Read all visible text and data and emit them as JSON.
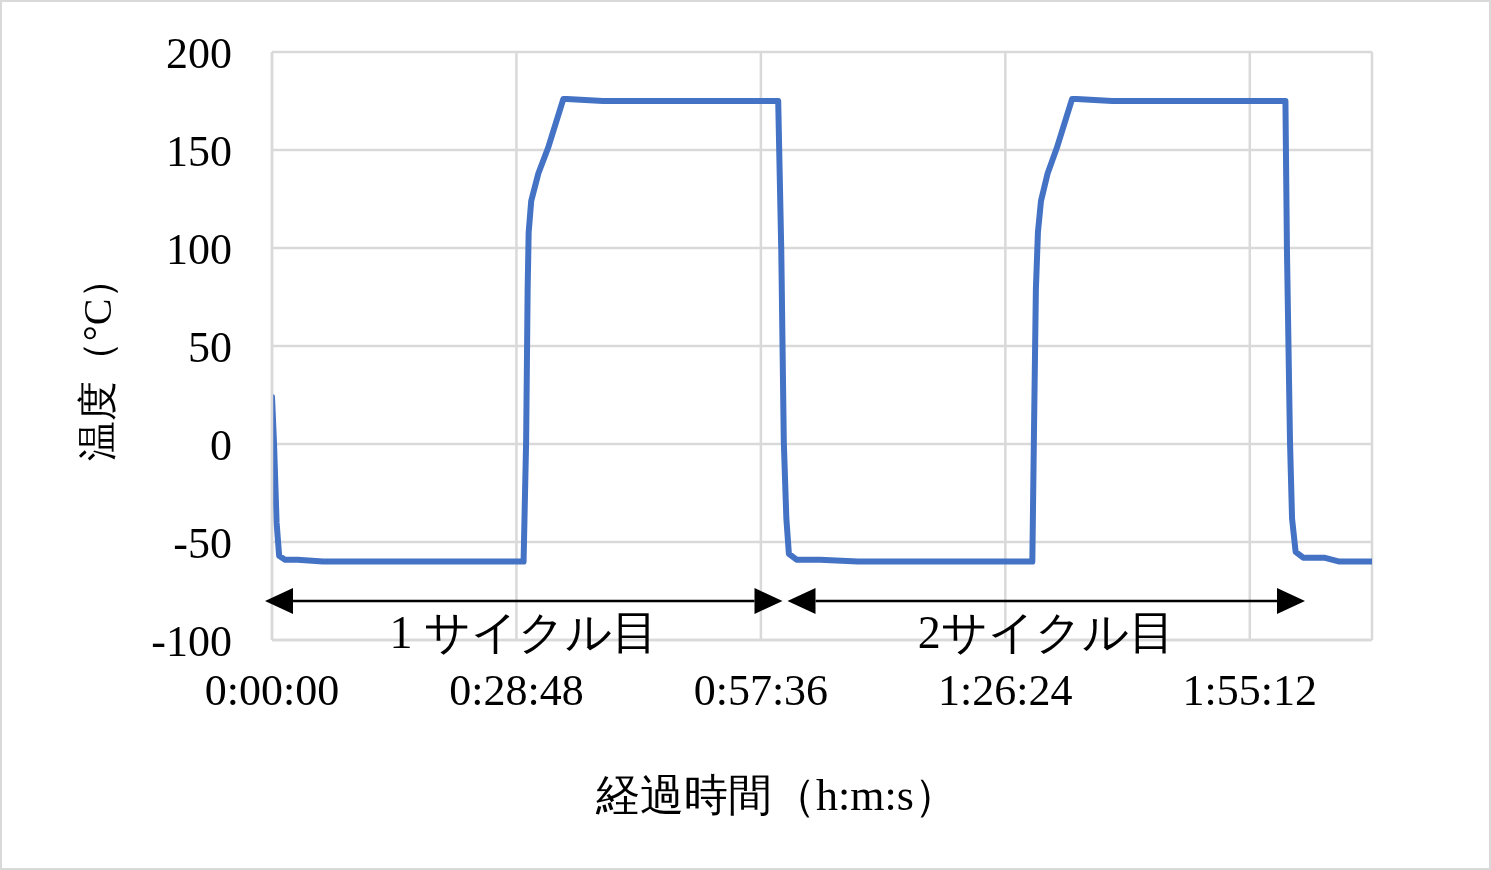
{
  "chart_data": {
    "type": "line",
    "xlabel": "経過時間（h:m:s）",
    "ylabel": "温度（°C）",
    "x": [
      0,
      0.004,
      0.009,
      0.014,
      0.025,
      0.05,
      0.1,
      0.2,
      0.3,
      0.4,
      0.494,
      0.499,
      0.502,
      0.504,
      0.509,
      0.523,
      0.542,
      0.572,
      0.579,
      0.65,
      0.8,
      0.994,
      1.0,
      1.005,
      1.01,
      1.015,
      1.03,
      1.076,
      1.15,
      1.3,
      1.493,
      1.496,
      1.5,
      1.504,
      1.51,
      1.523,
      1.541,
      1.571,
      1.58,
      1.65,
      1.8,
      1.99,
      1.993,
      1.999,
      2.003,
      2.01,
      2.025,
      2.066,
      2.096,
      2.16
    ],
    "series": [
      {
        "color": "#4472c4",
        "values": [
          24,
          0,
          -40,
          -57,
          -59,
          -59,
          -60,
          -60,
          -60,
          -60,
          -60,
          1,
          79,
          108,
          124,
          138,
          151,
          176,
          176,
          175,
          175,
          175,
          99,
          1,
          -38,
          -56,
          -59,
          -59,
          -60,
          -60,
          -60,
          1,
          79,
          108,
          124,
          138,
          151,
          176,
          176,
          175,
          175,
          175,
          99,
          1,
          -38,
          -55,
          -58,
          -58,
          -60,
          -60
        ]
      }
    ],
    "xlim": [
      0,
      2.16
    ],
    "xticks": [
      {
        "value": 0,
        "label": "0:00:00"
      },
      {
        "value": 0.48,
        "label": "0:28:48"
      },
      {
        "value": 0.96,
        "label": "0:57:36"
      },
      {
        "value": 1.44,
        "label": "1:26:24"
      },
      {
        "value": 1.92,
        "label": "1:55:12"
      }
    ],
    "ylim": [
      -100,
      200
    ],
    "yticks": [
      -100,
      -50,
      0,
      50,
      100,
      150,
      200
    ],
    "grid": true,
    "annotations": [
      "1 サイクル目",
      "2サイクル目"
    ]
  }
}
